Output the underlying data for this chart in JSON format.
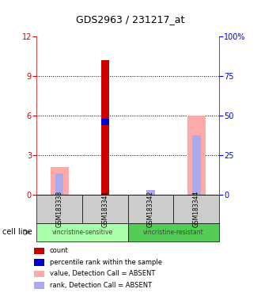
{
  "title": "GDS2963 / 231217_at",
  "samples": [
    "GSM183338",
    "GSM183341",
    "GSM183342",
    "GSM183344"
  ],
  "ylim_left": [
    0,
    12
  ],
  "ylim_right": [
    0,
    100
  ],
  "yticks_left": [
    0,
    3,
    6,
    9,
    12
  ],
  "yticks_right": [
    0,
    25,
    50,
    75,
    100
  ],
  "ytick_labels_right": [
    "0",
    "25",
    "50",
    "75",
    "100%"
  ],
  "count_values": [
    0,
    10.2,
    0,
    0
  ],
  "percentile_values": [
    0,
    5.5,
    0,
    0
  ],
  "absent_value": [
    2.1,
    0,
    0,
    6.0
  ],
  "absent_rank": [
    1.6,
    0,
    0.35,
    4.5
  ],
  "groups": [
    {
      "label": "vincristine-sensitive",
      "samples": [
        0,
        1
      ],
      "color": "#aaffaa"
    },
    {
      "label": "vincristine-resistant",
      "samples": [
        2,
        3
      ],
      "color": "#55cc55"
    }
  ],
  "count_color": "#cc0000",
  "percentile_color": "#0000cc",
  "absent_value_color": "#ffaaaa",
  "absent_rank_color": "#aaaaee",
  "legend_items": [
    {
      "color": "#cc0000",
      "label": "count"
    },
    {
      "color": "#0000cc",
      "label": "percentile rank within the sample"
    },
    {
      "color": "#ffaaaa",
      "label": "value, Detection Call = ABSENT"
    },
    {
      "color": "#aaaaee",
      "label": "rank, Detection Call = ABSENT"
    }
  ]
}
